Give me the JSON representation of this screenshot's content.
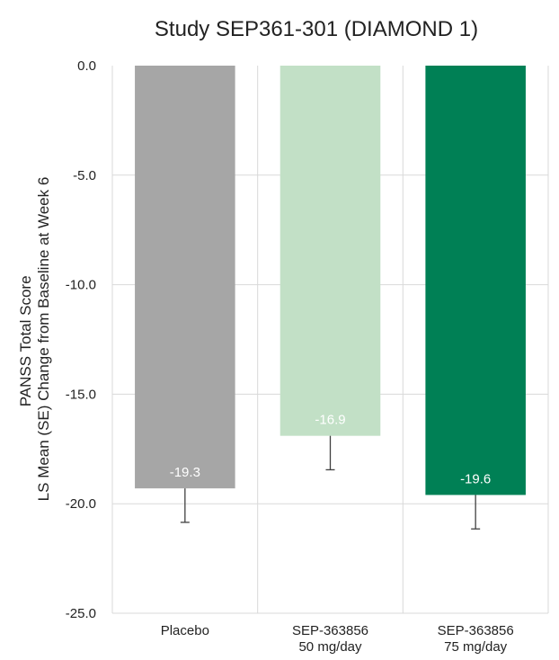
{
  "chart_data": {
    "type": "bar",
    "title": "Study SEP361-301 (DIAMOND 1)",
    "ylabel_lines": [
      "PANSS Total Score",
      "LS Mean (SE) Change from Baseline at Week 6"
    ],
    "ylim": [
      -25,
      0
    ],
    "yticks": [
      0,
      -5,
      -10,
      -15,
      -20,
      -25
    ],
    "ytick_labels": [
      "0.0",
      "-5.0",
      "-10.0",
      "-15.0",
      "-20.0",
      "-25.0"
    ],
    "grid": true,
    "bars": [
      {
        "category_lines": [
          "Placebo"
        ],
        "value": -19.3,
        "label": "-19.3",
        "se": 1.55,
        "color": "#a6a6a6"
      },
      {
        "category_lines": [
          "SEP-363856",
          "50 mg/day"
        ],
        "value": -16.9,
        "label": "-16.9",
        "se": 1.55,
        "color": "#c2e0c6"
      },
      {
        "category_lines": [
          "SEP-363856",
          "75 mg/day"
        ],
        "value": -19.6,
        "label": "-19.6",
        "se": 1.55,
        "color": "#008055"
      }
    ]
  }
}
